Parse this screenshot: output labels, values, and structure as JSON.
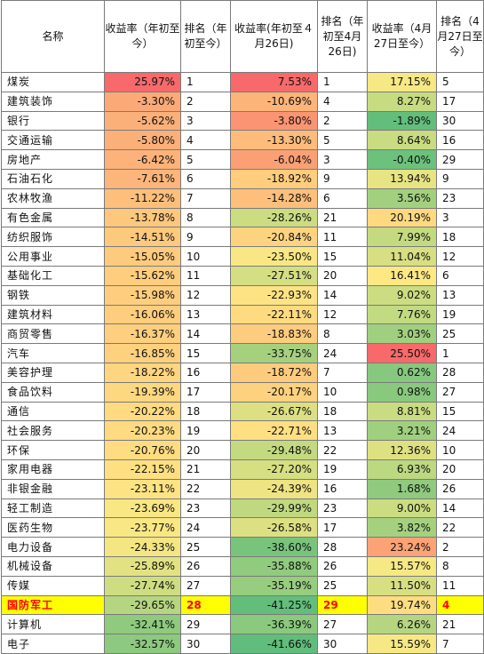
{
  "headers": [
    "名称",
    "收益率（年初至今）",
    "排名（年初至今）",
    "收益率(年初至４月26日)",
    "排名（年初至4月26日)",
    "收益率（4月27日至今）",
    "排名（4月27日至今）"
  ],
  "rows": [
    {
      "name": "煤炭",
      "r1": "25.97%",
      "k1": "1",
      "r2": "7.53%",
      "k2": "1",
      "r3": "17.15%",
      "k3": "5",
      "c1": "#f8696b",
      "c2": "#f8696b",
      "c3": "#f6e884"
    },
    {
      "name": "建筑装饰",
      "r1": "-3.30%",
      "k1": "2",
      "r2": "-10.69%",
      "k2": "4",
      "r3": "8.27%",
      "k3": "17",
      "c1": "#fbaa77",
      "c2": "#fcb479",
      "c3": "#c7db81"
    },
    {
      "name": "银行",
      "r1": "-5.62%",
      "k1": "3",
      "r2": "-3.80%",
      "k2": "2",
      "r3": "-1.89%",
      "k3": "30",
      "c1": "#fcb079",
      "c2": "#fa9473",
      "c3": "#63be7b"
    },
    {
      "name": "交通运输",
      "r1": "-5.80%",
      "k1": "4",
      "r2": "-13.30%",
      "k2": "5",
      "r3": "8.64%",
      "k3": "16",
      "c1": "#fcb079",
      "c2": "#fdbc7b",
      "c3": "#cadc81"
    },
    {
      "name": "房地产",
      "r1": "-6.42%",
      "k1": "5",
      "r2": "-6.04%",
      "k2": "3",
      "r3": "-0.40%",
      "k3": "29",
      "c1": "#fcb279",
      "c2": "#fba075",
      "c3": "#6cc17c"
    },
    {
      "name": "石油石化",
      "r1": "-7.61%",
      "k1": "6",
      "r2": "-18.92%",
      "k2": "9",
      "r3": "13.94%",
      "k3": "9",
      "c1": "#fcb57a",
      "c2": "#fecd7e",
      "c3": "#e8e483"
    },
    {
      "name": "农林牧渔",
      "r1": "-11.22%",
      "k1": "7",
      "r2": "-14.28%",
      "k2": "6",
      "r3": "3.56%",
      "k3": "23",
      "c1": "#fdbf7b",
      "c2": "#fdbf7b",
      "c3": "#a3d07f"
    },
    {
      "name": "有色金属",
      "r1": "-13.78%",
      "k1": "8",
      "r2": "-28.26%",
      "k2": "21",
      "r3": "20.19%",
      "k3": "3",
      "c1": "#fdc77d",
      "c2": "#ccdc81",
      "c3": "#fed980"
    },
    {
      "name": "纺织服饰",
      "r1": "-14.51%",
      "k1": "9",
      "r2": "-20.84%",
      "k2": "11",
      "r3": "7.99%",
      "k3": "18",
      "c1": "#fdc97d",
      "c2": "#fed380",
      "c3": "#c4da81"
    },
    {
      "name": "公用事业",
      "r1": "-15.05%",
      "k1": "10",
      "r2": "-23.50%",
      "k2": "15",
      "r3": "11.04%",
      "k3": "12",
      "c1": "#fecb7e",
      "c2": "#f8e784",
      "c3": "#d6df82"
    },
    {
      "name": "基础化工",
      "r1": "-15.62%",
      "k1": "11",
      "r2": "-27.51%",
      "k2": "20",
      "r3": "16.41%",
      "k3": "6",
      "c1": "#fecd7e",
      "c2": "#d4de82",
      "c3": "#fde884"
    },
    {
      "name": "钢铁",
      "r1": "-15.98%",
      "k1": "12",
      "r2": "-22.93%",
      "k2": "14",
      "r3": "9.02%",
      "k3": "13",
      "c1": "#fece7e",
      "c2": "#fde384",
      "c3": "#ccdd81"
    },
    {
      "name": "建筑材料",
      "r1": "-16.06%",
      "k1": "13",
      "r2": "-22.11%",
      "k2": "12",
      "r3": "7.76%",
      "k3": "19",
      "c1": "#fece7e",
      "c2": "#fedb81",
      "c3": "#c2da81"
    },
    {
      "name": "商贸零售",
      "r1": "-16.37%",
      "k1": "14",
      "r2": "-18.83%",
      "k2": "8",
      "r3": "3.03%",
      "k3": "25",
      "c1": "#fecf7f",
      "c2": "#fecc7e",
      "c3": "#a0cf7f"
    },
    {
      "name": "汽车",
      "r1": "-16.85%",
      "k1": "15",
      "r2": "-33.75%",
      "k2": "24",
      "r3": "25.50%",
      "k3": "1",
      "c1": "#fed17f",
      "c2": "#a5d17f",
      "c3": "#f8696b"
    },
    {
      "name": "美容护理",
      "r1": "-18.22%",
      "k1": "16",
      "r2": "-18.72%",
      "k2": "7",
      "r3": "0.62%",
      "k3": "28",
      "c1": "#fed580",
      "c2": "#fecb7e",
      "c3": "#86c87e"
    },
    {
      "name": "食品饮料",
      "r1": "-19.39%",
      "k1": "17",
      "r2": "-20.17%",
      "k2": "10",
      "r3": "0.98%",
      "k3": "27",
      "c1": "#fed880",
      "c2": "#fed17f",
      "c3": "#89c97e"
    },
    {
      "name": "通信",
      "r1": "-20.22%",
      "k1": "18",
      "r2": "-26.67%",
      "k2": "18",
      "r3": "8.81%",
      "k3": "15",
      "c1": "#feda81",
      "c2": "#dce082",
      "c3": "#cadc81"
    },
    {
      "name": "社会服务",
      "r1": "-20.23%",
      "k1": "19",
      "r2": "-22.71%",
      "k2": "13",
      "r3": "3.21%",
      "k3": "24",
      "c1": "#feda81",
      "c2": "#fedf82",
      "c3": "#a0cf7f"
    },
    {
      "name": "环保",
      "r1": "-20.76%",
      "k1": "20",
      "r2": "-29.48%",
      "k2": "22",
      "r3": "12.36%",
      "k3": "10",
      "c1": "#fedc81",
      "c2": "#c4da81",
      "c3": "#dee182"
    },
    {
      "name": "家用电器",
      "r1": "-22.15%",
      "k1": "21",
      "r2": "-27.20%",
      "k2": "19",
      "r3": "6.93%",
      "k3": "20",
      "c1": "#fee082",
      "c2": "#d6df82",
      "c3": "#bcd881"
    },
    {
      "name": "非银金融",
      "r1": "-23.11%",
      "k1": "22",
      "r2": "-24.39%",
      "k2": "16",
      "r3": "1.68%",
      "k3": "26",
      "c1": "#fde383",
      "c2": "#eee483",
      "c3": "#8fca7e"
    },
    {
      "name": "轻工制造",
      "r1": "-23.69%",
      "k1": "23",
      "r2": "-29.99%",
      "k2": "23",
      "r3": "9.00%",
      "k3": "14",
      "c1": "#f9e784",
      "c2": "#c0d980",
      "c3": "#ccdd81"
    },
    {
      "name": "医药生物",
      "r1": "-23.77%",
      "k1": "24",
      "r2": "-26.58%",
      "k2": "17",
      "r3": "3.82%",
      "k3": "22",
      "c1": "#f9e784",
      "c2": "#dde082",
      "c3": "#a5d17f"
    },
    {
      "name": "电力设备",
      "r1": "-24.33%",
      "k1": "25",
      "r2": "-38.60%",
      "k2": "28",
      "r3": "23.24%",
      "k3": "2",
      "c1": "#f3e683",
      "c2": "#78c47d",
      "c3": "#fba276"
    },
    {
      "name": "机械设备",
      "r1": "-25.89%",
      "k1": "26",
      "r2": "-35.88%",
      "k2": "26",
      "r3": "15.57%",
      "k3": "8",
      "c1": "#e3e283",
      "c2": "#90cb7e",
      "c3": "#f6e884"
    },
    {
      "name": "传媒",
      "r1": "-27.74%",
      "k1": "27",
      "r2": "-35.19%",
      "k2": "25",
      "r3": "11.50%",
      "k3": "11",
      "c1": "#cfdd82",
      "c2": "#97cd7e",
      "c3": "#d8df82"
    },
    {
      "name": "国防军工",
      "r1": "-29.65%",
      "k1": "28",
      "r2": "-41.25%",
      "k2": "29",
      "r3": "19.74%",
      "k3": "4",
      "c1": "#b6d580",
      "c2": "#63be7b",
      "c3": "#fedd81",
      "highlight": true
    },
    {
      "name": "计算机",
      "r1": "-32.41%",
      "k1": "29",
      "r2": "-36.39%",
      "k2": "27",
      "r3": "6.26%",
      "k3": "21",
      "c1": "#8fca7e",
      "c2": "#8bc97e",
      "c3": "#b5d580"
    },
    {
      "name": "电子",
      "r1": "-32.57%",
      "k1": "30",
      "r2": "-41.66%",
      "k2": "30",
      "r3": "15.59%",
      "k3": "7",
      "c1": "#8dc97e",
      "c2": "#60bd7b",
      "c3": "#f6e884"
    }
  ]
}
